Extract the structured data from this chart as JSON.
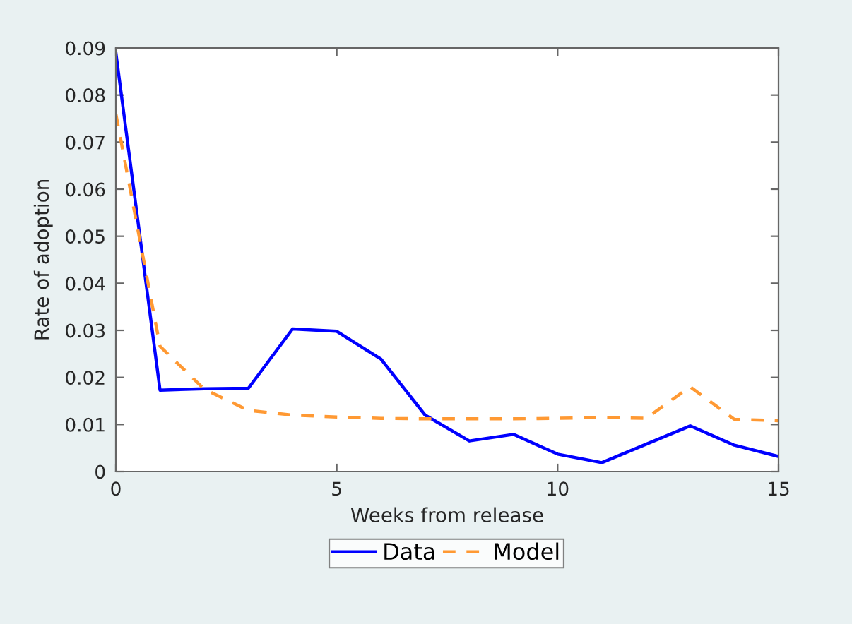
{
  "chart_data": {
    "type": "line",
    "xlabel": "Weeks from release",
    "ylabel": "Rate of adoption",
    "x": [
      0,
      1,
      2,
      3,
      4,
      5,
      6,
      7,
      8,
      9,
      10,
      11,
      12,
      13,
      14,
      15
    ],
    "series": [
      {
        "name": "Data",
        "color": "#0000ff",
        "line_style": "solid",
        "values": [
          0.089,
          0.0173,
          0.0176,
          0.0177,
          0.0303,
          0.0298,
          0.0239,
          0.012,
          0.0065,
          0.0079,
          0.0037,
          0.0019,
          0.0058,
          0.0097,
          0.0056,
          0.0032
        ]
      },
      {
        "name": "Model",
        "color": "#ff9933",
        "line_style": "dashed",
        "values": [
          0.076,
          0.0266,
          0.0175,
          0.013,
          0.012,
          0.0116,
          0.0113,
          0.0112,
          0.0112,
          0.0112,
          0.0113,
          0.0115,
          0.0113,
          0.018,
          0.0111,
          0.0108
        ]
      }
    ],
    "xlim": [
      0,
      15
    ],
    "xticks": [
      0,
      5,
      10,
      15
    ],
    "ylim": [
      0,
      0.09
    ],
    "yticks": [
      0,
      0.01,
      0.02,
      0.03,
      0.04,
      0.05,
      0.06,
      0.07,
      0.08,
      0.09
    ],
    "grid": false,
    "legend": "bottom",
    "marker": "none"
  }
}
